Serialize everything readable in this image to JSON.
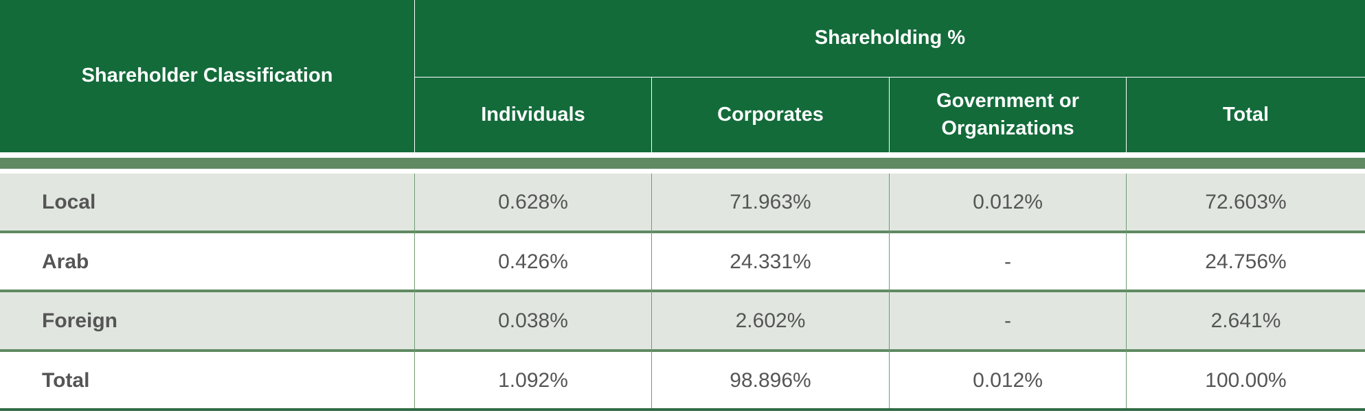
{
  "header": {
    "classification_label": "Shareholder Classification",
    "group_label": "Shareholding %",
    "columns": [
      "Individuals",
      "Corporates",
      "Government or Organizations",
      "Total"
    ]
  },
  "rows": [
    {
      "label": "Local",
      "values": [
        "0.628%",
        "71.963%",
        "0.012%",
        "72.603%"
      ]
    },
    {
      "label": "Arab",
      "values": [
        "0.426%",
        "24.331%",
        "-",
        "24.756%"
      ]
    },
    {
      "label": "Foreign",
      "values": [
        "0.038%",
        "2.602%",
        "-",
        "2.641%"
      ]
    },
    {
      "label": "Total",
      "values": [
        "1.092%",
        "98.896%",
        "0.012%",
        "100.00%"
      ]
    }
  ],
  "colors": {
    "header_green": "#136b3a",
    "band": "#5f8a62",
    "shaded_row": "#e1e7e0",
    "text": "#555555"
  }
}
